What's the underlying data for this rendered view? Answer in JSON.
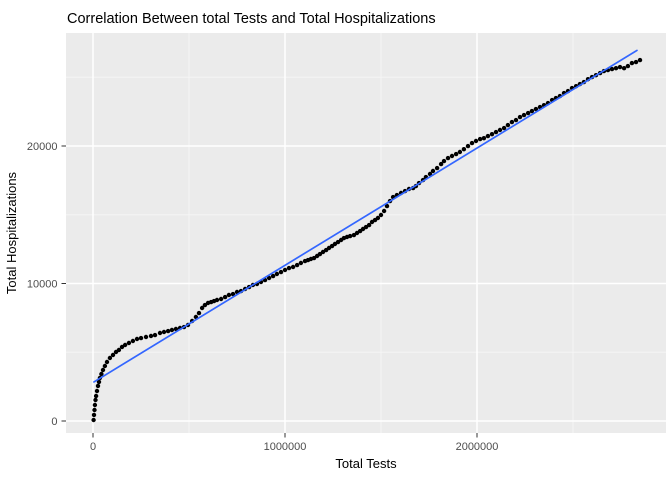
{
  "chart_data": {
    "type": "scatter",
    "title": "Correlation Between total Tests and Total Hospitalizations",
    "xlabel": "Total Tests",
    "ylabel": "Total Hospitalizations",
    "xlim": [
      -140625,
      2984375
    ],
    "ylim": [
      -873,
      28218
    ],
    "x_ticks": [
      0,
      1000000,
      2000000
    ],
    "x_tick_labels": [
      "0",
      "1000000",
      "2000000"
    ],
    "x_minor_ticks": [
      500000,
      1500000,
      2500000
    ],
    "y_ticks": [
      0,
      10000,
      20000
    ],
    "y_tick_labels": [
      "0",
      "10000",
      "20000"
    ],
    "y_minor_ticks": [
      5000,
      15000,
      25000
    ],
    "grid": true,
    "legend": false,
    "series": [
      {
        "name": "observations",
        "marker": "circle",
        "color": "#000000",
        "points": [
          [
            3000,
            70
          ],
          [
            5000,
            440
          ],
          [
            8000,
            800
          ],
          [
            10000,
            1160
          ],
          [
            13000,
            1530
          ],
          [
            16000,
            1820
          ],
          [
            21000,
            2180
          ],
          [
            26000,
            2550
          ],
          [
            31000,
            2840
          ],
          [
            36000,
            3130
          ],
          [
            44000,
            3420
          ],
          [
            52000,
            3710
          ],
          [
            62000,
            4000
          ],
          [
            73000,
            4290
          ],
          [
            88000,
            4580
          ],
          [
            104000,
            4800
          ],
          [
            120000,
            5020
          ],
          [
            135000,
            5160
          ],
          [
            151000,
            5380
          ],
          [
            167000,
            5530
          ],
          [
            187000,
            5670
          ],
          [
            208000,
            5820
          ],
          [
            229000,
            5960
          ],
          [
            250000,
            6030
          ],
          [
            276000,
            6110
          ],
          [
            302000,
            6180
          ],
          [
            323000,
            6250
          ],
          [
            349000,
            6400
          ],
          [
            370000,
            6470
          ],
          [
            391000,
            6540
          ],
          [
            411000,
            6620
          ],
          [
            432000,
            6690
          ],
          [
            453000,
            6760
          ],
          [
            474000,
            6830
          ],
          [
            495000,
            6980
          ],
          [
            516000,
            7270
          ],
          [
            536000,
            7560
          ],
          [
            552000,
            7850
          ],
          [
            568000,
            8220
          ],
          [
            583000,
            8430
          ],
          [
            599000,
            8580
          ],
          [
            615000,
            8650
          ],
          [
            630000,
            8720
          ],
          [
            646000,
            8800
          ],
          [
            667000,
            8870
          ],
          [
            688000,
            9010
          ],
          [
            708000,
            9160
          ],
          [
            729000,
            9230
          ],
          [
            750000,
            9380
          ],
          [
            771000,
            9450
          ],
          [
            792000,
            9600
          ],
          [
            813000,
            9740
          ],
          [
            833000,
            9890
          ],
          [
            854000,
            9960
          ],
          [
            875000,
            10110
          ],
          [
            896000,
            10250
          ],
          [
            917000,
            10400
          ],
          [
            938000,
            10540
          ],
          [
            958000,
            10690
          ],
          [
            979000,
            10830
          ],
          [
            1000000,
            10980
          ],
          [
            1021000,
            11120
          ],
          [
            1042000,
            11200
          ],
          [
            1063000,
            11340
          ],
          [
            1083000,
            11490
          ],
          [
            1104000,
            11630
          ],
          [
            1120000,
            11700
          ],
          [
            1135000,
            11780
          ],
          [
            1151000,
            11850
          ],
          [
            1167000,
            12000
          ],
          [
            1182000,
            12140
          ],
          [
            1198000,
            12290
          ],
          [
            1214000,
            12430
          ],
          [
            1229000,
            12580
          ],
          [
            1245000,
            12720
          ],
          [
            1260000,
            12870
          ],
          [
            1276000,
            13010
          ],
          [
            1292000,
            13160
          ],
          [
            1307000,
            13300
          ],
          [
            1323000,
            13380
          ],
          [
            1339000,
            13450
          ],
          [
            1359000,
            13520
          ],
          [
            1375000,
            13670
          ],
          [
            1391000,
            13810
          ],
          [
            1406000,
            13960
          ],
          [
            1422000,
            14100
          ],
          [
            1438000,
            14250
          ],
          [
            1453000,
            14470
          ],
          [
            1469000,
            14610
          ],
          [
            1484000,
            14760
          ],
          [
            1500000,
            14980
          ],
          [
            1516000,
            15270
          ],
          [
            1531000,
            15630
          ],
          [
            1547000,
            15990
          ],
          [
            1563000,
            16280
          ],
          [
            1583000,
            16430
          ],
          [
            1604000,
            16580
          ],
          [
            1625000,
            16720
          ],
          [
            1646000,
            16870
          ],
          [
            1667000,
            16940
          ],
          [
            1682000,
            17080
          ],
          [
            1698000,
            17300
          ],
          [
            1719000,
            17520
          ],
          [
            1734000,
            17740
          ],
          [
            1755000,
            17960
          ],
          [
            1771000,
            18180
          ],
          [
            1792000,
            18390
          ],
          [
            1813000,
            18680
          ],
          [
            1828000,
            18900
          ],
          [
            1849000,
            19120
          ],
          [
            1870000,
            19270
          ],
          [
            1891000,
            19410
          ],
          [
            1911000,
            19560
          ],
          [
            1932000,
            19770
          ],
          [
            1953000,
            19990
          ],
          [
            1974000,
            20210
          ],
          [
            1995000,
            20360
          ],
          [
            2016000,
            20500
          ],
          [
            2036000,
            20570
          ],
          [
            2057000,
            20720
          ],
          [
            2078000,
            20860
          ],
          [
            2099000,
            21010
          ],
          [
            2120000,
            21160
          ],
          [
            2141000,
            21300
          ],
          [
            2161000,
            21520
          ],
          [
            2182000,
            21740
          ],
          [
            2203000,
            21880
          ],
          [
            2224000,
            22100
          ],
          [
            2245000,
            22250
          ],
          [
            2266000,
            22390
          ],
          [
            2286000,
            22540
          ],
          [
            2307000,
            22680
          ],
          [
            2328000,
            22830
          ],
          [
            2349000,
            22970
          ],
          [
            2370000,
            23120
          ],
          [
            2391000,
            23340
          ],
          [
            2411000,
            23480
          ],
          [
            2432000,
            23630
          ],
          [
            2453000,
            23850
          ],
          [
            2474000,
            23990
          ],
          [
            2495000,
            24210
          ],
          [
            2516000,
            24350
          ],
          [
            2536000,
            24500
          ],
          [
            2557000,
            24650
          ],
          [
            2578000,
            24860
          ],
          [
            2599000,
            25010
          ],
          [
            2620000,
            25150
          ],
          [
            2641000,
            25300
          ],
          [
            2661000,
            25450
          ],
          [
            2682000,
            25520
          ],
          [
            2703000,
            25590
          ],
          [
            2724000,
            25660
          ],
          [
            2745000,
            25740
          ],
          [
            2766000,
            25660
          ],
          [
            2786000,
            25810
          ],
          [
            2807000,
            26030
          ],
          [
            2828000,
            26100
          ],
          [
            2849000,
            26250
          ]
        ]
      }
    ],
    "trend_line": {
      "name": "linear-fit",
      "color": "#3366FF",
      "x": [
        5000,
        2833000
      ],
      "y": [
        2840,
        26950
      ]
    }
  },
  "colors": {
    "background": "#FFFFFF",
    "panel_bg": "#EBEBEB",
    "grid_major": "#FFFFFF",
    "grid_minor": "#F5F5F5",
    "tick_mark": "#333333",
    "tick_label": "#4D4D4D",
    "point": "#000000",
    "trend": "#3366FF",
    "text": "#000000"
  }
}
